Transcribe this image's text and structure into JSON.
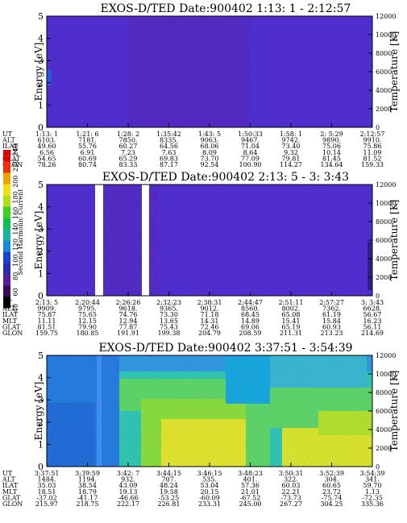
{
  "chart_data": [
    {
      "type": "heatmap",
      "title": "EXOS-D/TED   Date:900402   1:13: 1 - 2:12:57",
      "ylabel": "Energy [eV]",
      "ylabel_right": "Temperature [K]",
      "ylim": [
        0,
        5
      ],
      "yticks": [
        "0",
        "1",
        "2",
        "3",
        "4",
        "5"
      ],
      "ylim_right": [
        0,
        12000
      ],
      "yticks_right": [
        "0",
        "2000",
        "4000",
        "6000",
        "8000",
        "10000",
        "12000"
      ],
      "dominant_color": "#4a2fd8",
      "table": {
        "labels": [
          "UT",
          "ALT",
          "ILAT",
          "MLT",
          "GLAT",
          "GLON"
        ],
        "columns": [
          [
            "1:13: 1",
            "6103.",
            "49.60",
            "6.56",
            "54.65",
            "78.26"
          ],
          [
            "1:21: 6",
            "7181.",
            "55.76",
            "6.91",
            "60.69",
            "80.74"
          ],
          [
            "1:28: 2",
            "7850.",
            "60.27",
            "7.23",
            "65.29",
            "83.33"
          ],
          [
            "1:35:42",
            "8335.",
            "64.56",
            "7.63",
            "69.83",
            "87.17"
          ],
          [
            "1:43: 5",
            "9063.",
            "68.06",
            "8.09",
            "73.70",
            "92.54"
          ],
          [
            "1:50:33",
            "9467.",
            "71.04",
            "8.64",
            "77.09",
            "100.90"
          ],
          [
            "1:58: 1",
            "9742.",
            "73.40",
            "9.32",
            "79.81",
            "114.27"
          ],
          [
            "2: 5:29",
            "9890.",
            "75.06",
            "10.14",
            "81.45",
            "134.64"
          ],
          [
            "2:12:57",
            "9910.",
            "75.86",
            "11.09",
            "81.52",
            "159.33"
          ]
        ]
      }
    },
    {
      "type": "heatmap",
      "title": "EXOS-D/TED   Date:900402   2:13: 5 - 3: 3:43",
      "ylabel": "Energy [eV]",
      "ylabel_right": "Temperature [K]",
      "ylim": [
        0,
        5
      ],
      "yticks": [
        "0",
        "1",
        "2",
        "3",
        "4",
        "5"
      ],
      "ylim_right": [
        0,
        12000
      ],
      "yticks_right": [
        "0",
        "2000",
        "4000",
        "6000",
        "8000",
        "10000",
        "12000"
      ],
      "dominant_color": "#4a2fd8",
      "data_gaps": [
        "≈2:17–2:20",
        "≈2:24–2:26"
      ],
      "table": {
        "labels": [
          "UT",
          "ALT",
          "ILAT",
          "MLT",
          "GLAT",
          "GLON"
        ],
        "columns": [
          [
            "2:13: 5",
            "9909.",
            "75.87",
            "11.11",
            "81.51",
            "159.75"
          ],
          [
            "2:20:44",
            "9795.",
            "75.65",
            "12.15",
            "79.90",
            "180.85"
          ],
          [
            "2:26:26",
            "9618.",
            "74.76",
            "12.94",
            "77.87",
            "191.91"
          ],
          [
            "2:32:23",
            "9365.",
            "73.30",
            "13.65",
            "75.43",
            "199.38"
          ],
          [
            "2:38:31",
            "9012.",
            "71.18",
            "14.31",
            "72.46",
            "204.79"
          ],
          [
            "2:44:47",
            "8560.",
            "68.45",
            "14.89",
            "69.06",
            "208.59"
          ],
          [
            "2:51:11",
            "8002.",
            "65.08",
            "15.41",
            "65.19",
            "211.31"
          ],
          [
            "2:57:27",
            "7362.",
            "61.19",
            "15.84",
            "60.93",
            "213.23"
          ],
          [
            "3: 3:43",
            "6628.",
            "56.67",
            "16.23",
            "56.11",
            "214.69"
          ]
        ]
      }
    },
    {
      "type": "heatmap",
      "title": "EXOS-D/TED   Date:900402   3:37:51 - 3:54:39",
      "ylabel": "Energy [eV]",
      "ylabel_right": "Temperature [K]",
      "ylim": [
        0,
        5
      ],
      "yticks": [
        "0",
        "1",
        "2",
        "3",
        "4",
        "5"
      ],
      "ylim_right": [
        0,
        12000
      ],
      "yticks_right": [
        "0",
        "2000",
        "4000",
        "6000",
        "8000",
        "10000",
        "12000"
      ],
      "dominant_colors": [
        "#1f7fe0",
        "#2ad0b0",
        "#5be060",
        "#e8f020"
      ],
      "table": {
        "labels": [
          "UT",
          "ALT",
          "ILAT",
          "MLT",
          "GLAT",
          "GLON"
        ],
        "columns": [
          [
            "3:37:51",
            "1484.",
            "35.03",
            "18.51",
            "-37.02",
            "215.97"
          ],
          [
            "3:39:59",
            "1194.",
            "38.54",
            "18.79",
            "-41.17",
            "218.75"
          ],
          [
            "3:42: 7",
            "932.",
            "43.09",
            "19.13",
            "-46.66",
            "222.17"
          ],
          [
            "3:44:15",
            "707.",
            "48.24",
            "19.58",
            "-53.25",
            "226.81"
          ],
          [
            "3:46:15",
            "535.",
            "53.04",
            "20.15",
            "-60.09",
            "233.31"
          ],
          [
            "3:48:23",
            "401.",
            "57.36",
            "21.01",
            "-67.52",
            "245.00"
          ],
          [
            "3:50:31",
            "322.",
            "60.03",
            "22.21",
            "-73.73",
            "267.27"
          ],
          [
            "3:52:39",
            "304.",
            "60.65",
            "23.72",
            "-75.74",
            "304.25"
          ],
          [
            "3:54:39",
            "341.",
            "59.70",
            "1.13",
            "-72.35",
            "335.36"
          ]
        ]
      }
    }
  ],
  "colorbar": {
    "label": "Second Harmonic Current",
    "ticks": [
      "40",
      "60",
      "80",
      "100",
      "120",
      "140",
      "160",
      "180",
      "200",
      "220",
      "240"
    ],
    "colors": [
      "#000000",
      "#3a0a5a",
      "#5a1a9a",
      "#2a2ab0",
      "#1a40d8",
      "#1a8ad8",
      "#10b8a0",
      "#10c050",
      "#40d020",
      "#b0e010",
      "#f0e010",
      "#f0a000",
      "#f03000",
      "#e00000"
    ]
  }
}
